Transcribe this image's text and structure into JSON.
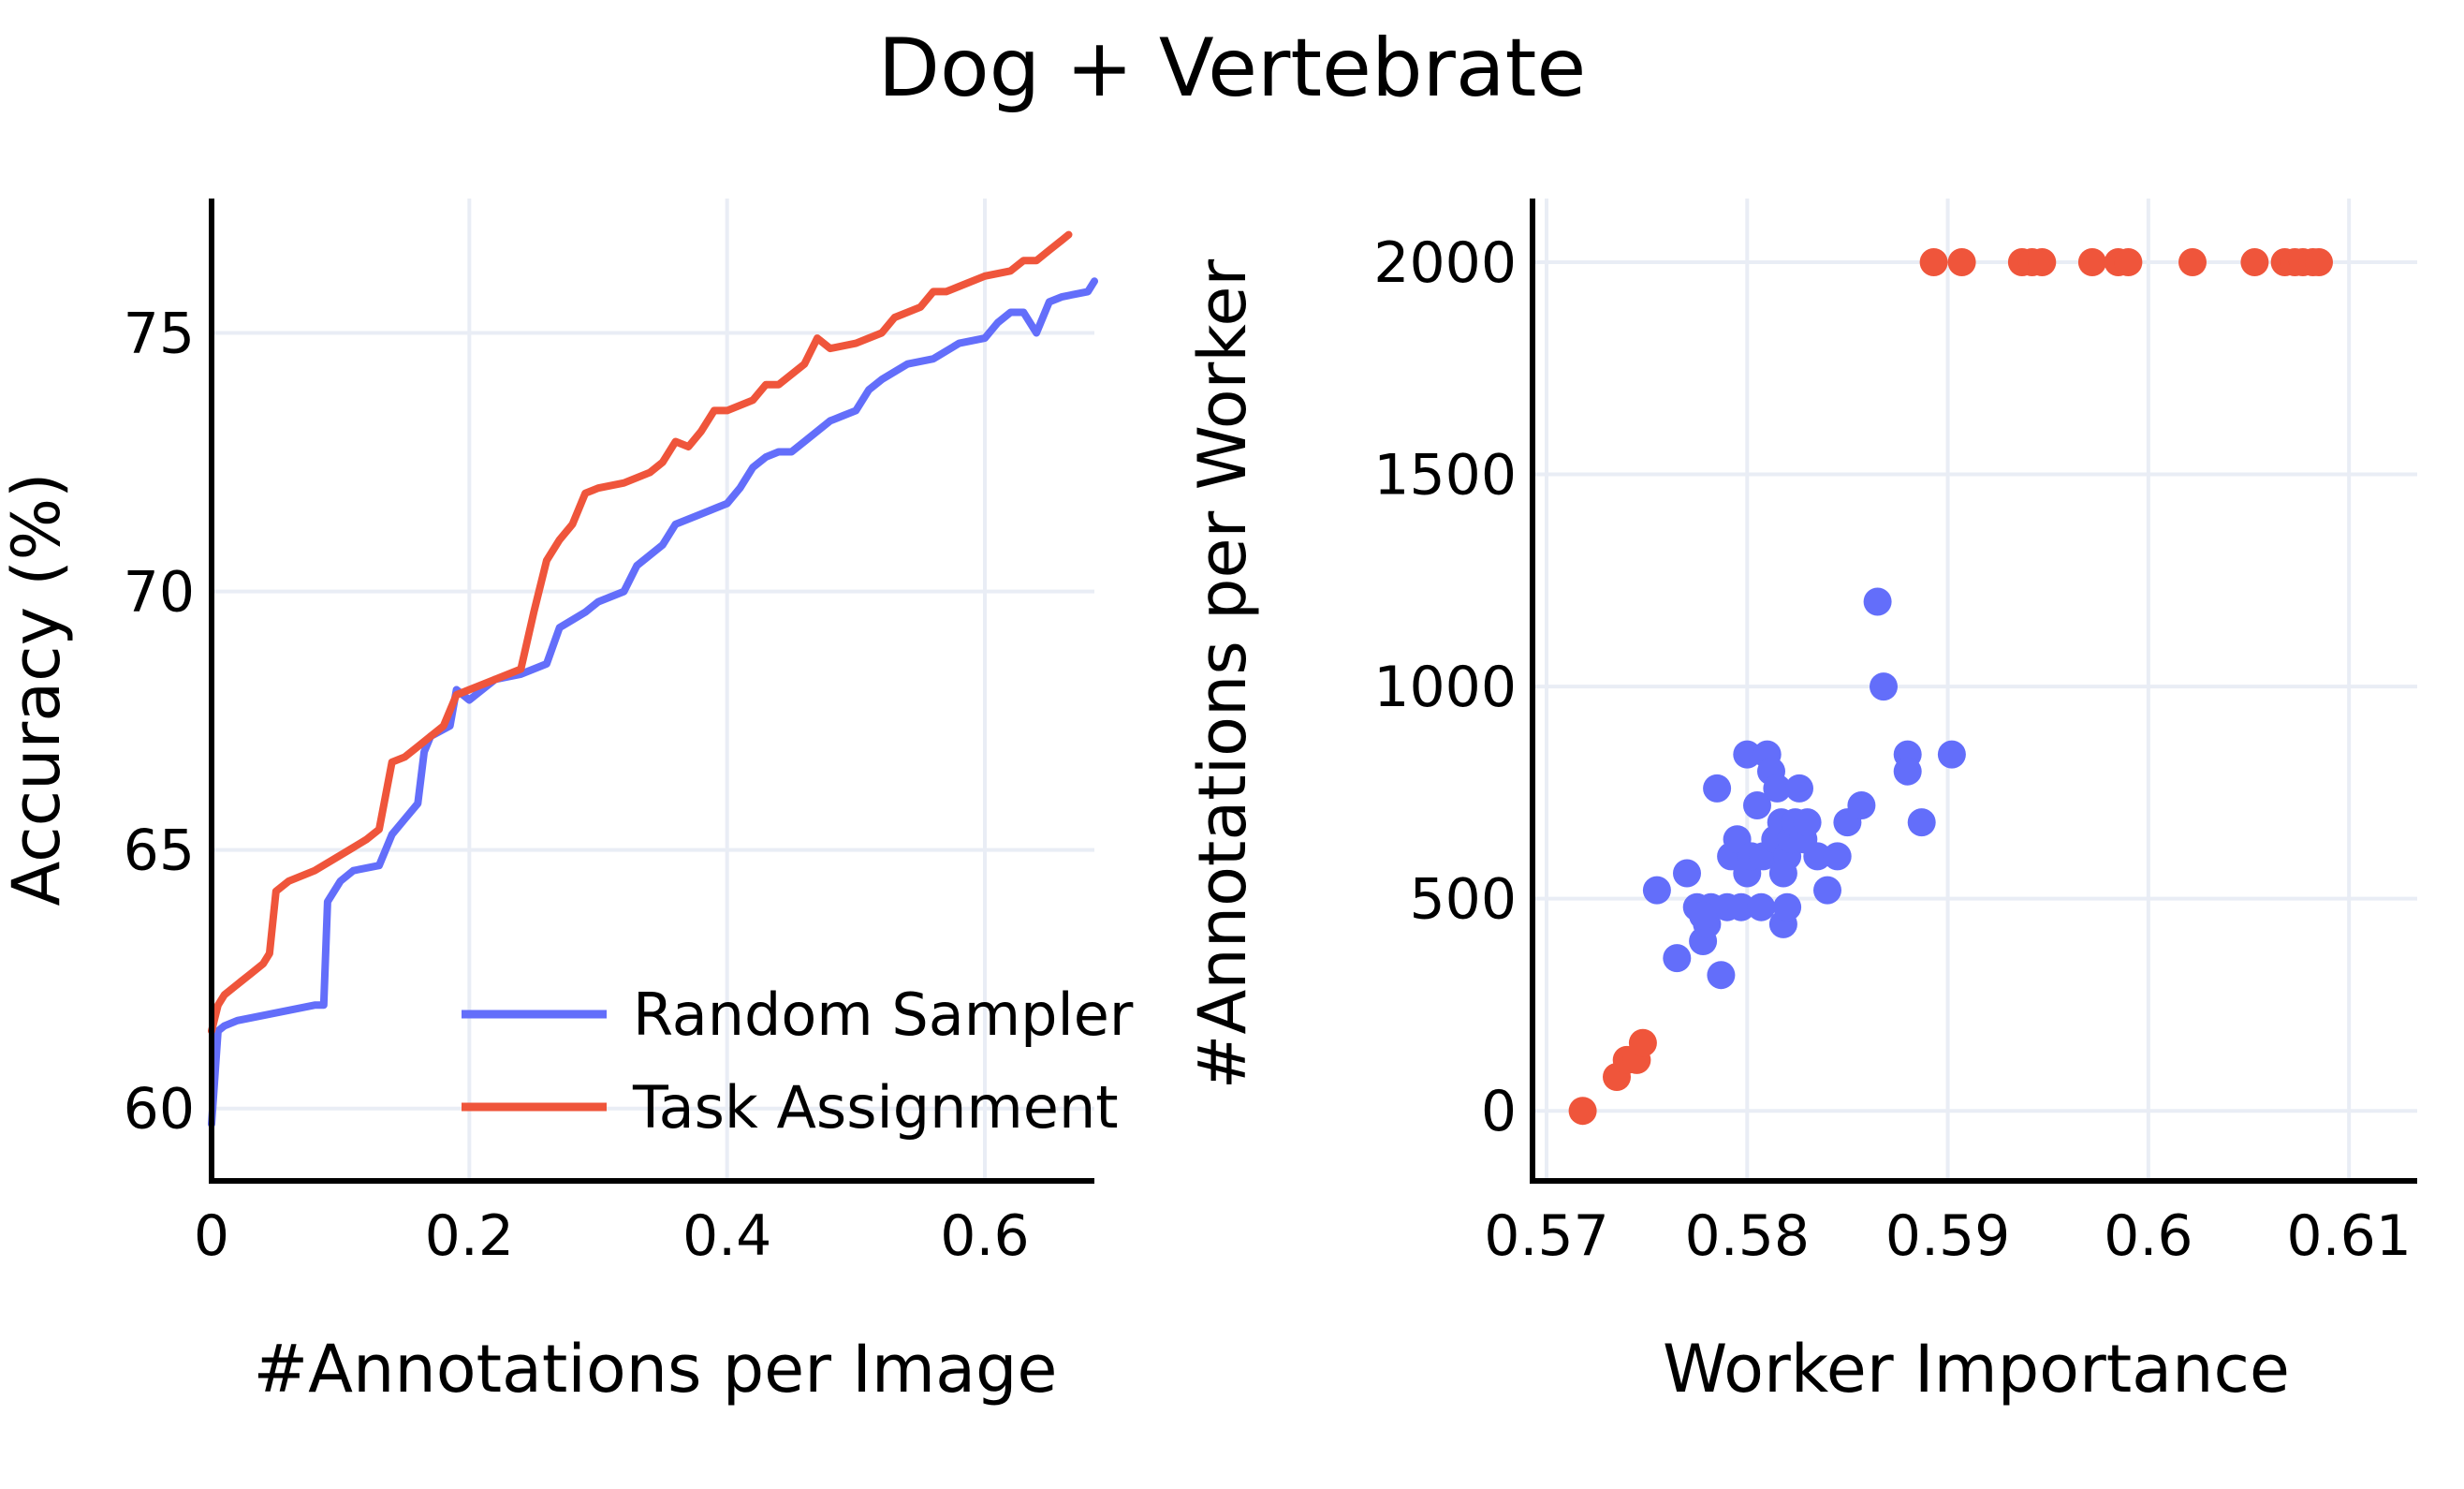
{
  "title": "Dog + Vertebrate",
  "colors": {
    "series1": "#636efa",
    "series2": "#ef553b",
    "grid": "#e9edf5",
    "axis": "#000000"
  },
  "chart_data": [
    {
      "type": "line",
      "xlabel": "#Annotations per Image",
      "ylabel": "Accuracy (%)",
      "xlim": [
        0,
        0.685
      ],
      "ylim": [
        58.6,
        77.6
      ],
      "xticks": [
        0,
        0.2,
        0.4,
        0.6
      ],
      "xtick_labels": [
        "0",
        "0.2",
        "0.4",
        "0.6"
      ],
      "yticks": [
        60,
        65,
        70,
        75
      ],
      "ytick_labels": [
        "60",
        "65",
        "70",
        "75"
      ],
      "grid": true,
      "legend_position": "bottom-right",
      "series": [
        {
          "name": "Random Sampler",
          "color": "#636efa",
          "x": [
            0,
            0.005,
            0.01,
            0.02,
            0.04,
            0.06,
            0.08,
            0.087,
            0.09,
            0.1,
            0.11,
            0.13,
            0.14,
            0.15,
            0.16,
            0.165,
            0.17,
            0.185,
            0.19,
            0.2,
            0.22,
            0.24,
            0.26,
            0.27,
            0.29,
            0.3,
            0.32,
            0.33,
            0.35,
            0.36,
            0.38,
            0.4,
            0.41,
            0.42,
            0.43,
            0.44,
            0.45,
            0.46,
            0.48,
            0.49,
            0.5,
            0.51,
            0.52,
            0.54,
            0.56,
            0.58,
            0.6,
            0.61,
            0.62,
            0.63,
            0.64,
            0.65,
            0.66,
            0.68,
            0.685
          ],
          "y": [
            59.7,
            61.5,
            61.6,
            61.7,
            61.8,
            61.9,
            62.0,
            62.0,
            64.0,
            64.4,
            64.6,
            64.7,
            65.3,
            65.6,
            65.9,
            66.9,
            67.2,
            67.4,
            68.1,
            67.9,
            68.3,
            68.4,
            68.6,
            69.3,
            69.6,
            69.8,
            70.0,
            70.5,
            70.9,
            71.3,
            71.5,
            71.7,
            72.0,
            72.4,
            72.6,
            72.7,
            72.7,
            72.9,
            73.3,
            73.4,
            73.5,
            73.9,
            74.1,
            74.4,
            74.5,
            74.8,
            74.9,
            75.2,
            75.4,
            75.4,
            75.0,
            75.6,
            75.7,
            75.8,
            76.0
          ]
        },
        {
          "name": "Task Assignment",
          "color": "#ef553b",
          "x": [
            0,
            0.005,
            0.01,
            0.02,
            0.03,
            0.04,
            0.045,
            0.05,
            0.06,
            0.08,
            0.1,
            0.12,
            0.13,
            0.14,
            0.15,
            0.16,
            0.18,
            0.19,
            0.2,
            0.22,
            0.24,
            0.25,
            0.26,
            0.27,
            0.28,
            0.29,
            0.3,
            0.32,
            0.34,
            0.35,
            0.36,
            0.37,
            0.38,
            0.39,
            0.4,
            0.42,
            0.43,
            0.44,
            0.46,
            0.47,
            0.48,
            0.5,
            0.52,
            0.53,
            0.55,
            0.56,
            0.57,
            0.58,
            0.6,
            0.62,
            0.63,
            0.64,
            0.65,
            0.66,
            0.665
          ],
          "y": [
            61.5,
            62.0,
            62.2,
            62.4,
            62.6,
            62.8,
            63.0,
            64.2,
            64.4,
            64.6,
            64.9,
            65.2,
            65.4,
            66.7,
            66.8,
            67.0,
            67.4,
            68.0,
            68.1,
            68.3,
            68.5,
            69.6,
            70.6,
            71.0,
            71.3,
            71.9,
            72.0,
            72.1,
            72.3,
            72.5,
            72.9,
            72.8,
            73.1,
            73.5,
            73.5,
            73.7,
            74.0,
            74.0,
            74.4,
            74.9,
            74.7,
            74.8,
            75.0,
            75.3,
            75.5,
            75.8,
            75.8,
            75.9,
            76.1,
            76.2,
            76.4,
            76.4,
            76.6,
            76.8,
            76.9
          ]
        }
      ]
    },
    {
      "type": "scatter",
      "xlabel": "Worker Importance",
      "ylabel": "#Annotations per Worker",
      "xlim": [
        0.5693,
        0.6134
      ],
      "ylim": [
        -165,
        2150
      ],
      "xticks": [
        0.57,
        0.58,
        0.59,
        0.6,
        0.61
      ],
      "xtick_labels": [
        "0.57",
        "0.58",
        "0.59",
        "0.6",
        "0.61"
      ],
      "yticks": [
        0,
        500,
        1000,
        1500,
        2000
      ],
      "ytick_labels": [
        "0",
        "500",
        "1000",
        "1500",
        "2000"
      ],
      "grid": true,
      "series": [
        {
          "color": "#636efa",
          "points": [
            [
              0.5755,
              520
            ],
            [
              0.5765,
              360
            ],
            [
              0.577,
              560
            ],
            [
              0.5775,
              480
            ],
            [
              0.5778,
              400
            ],
            [
              0.578,
              440
            ],
            [
              0.5782,
              480
            ],
            [
              0.5785,
              760
            ],
            [
              0.5787,
              320
            ],
            [
              0.579,
              480
            ],
            [
              0.5792,
              600
            ],
            [
              0.5795,
              640
            ],
            [
              0.5797,
              480
            ],
            [
              0.58,
              840
            ],
            [
              0.58,
              560
            ],
            [
              0.5802,
              600
            ],
            [
              0.5805,
              720
            ],
            [
              0.5807,
              480
            ],
            [
              0.5808,
              600
            ],
            [
              0.581,
              840
            ],
            [
              0.5812,
              800
            ],
            [
              0.5814,
              640
            ],
            [
              0.5815,
              760
            ],
            [
              0.5817,
              680
            ],
            [
              0.5818,
              440
            ],
            [
              0.582,
              480
            ],
            [
              0.582,
              600
            ],
            [
              0.5822,
              640
            ],
            [
              0.5824,
              680
            ],
            [
              0.5826,
              760
            ],
            [
              0.5828,
              640
            ],
            [
              0.583,
              680
            ],
            [
              0.5835,
              600
            ],
            [
              0.584,
              520
            ],
            [
              0.5845,
              600
            ],
            [
              0.585,
              680
            ],
            [
              0.5857,
              720
            ],
            [
              0.5865,
              1200
            ],
            [
              0.5868,
              1000
            ],
            [
              0.588,
              840
            ],
            [
              0.588,
              800
            ],
            [
              0.5887,
              680
            ],
            [
              0.5902,
              840
            ],
            [
              0.5778,
              460
            ],
            [
              0.5818,
              560
            ]
          ]
        },
        {
          "color": "#ef553b",
          "points": [
            [
              0.5718,
              0
            ],
            [
              0.5735,
              80
            ],
            [
              0.574,
              120
            ],
            [
              0.5745,
              120
            ],
            [
              0.5748,
              160
            ],
            [
              0.5893,
              2000
            ],
            [
              0.5907,
              2000
            ],
            [
              0.5937,
              2000
            ],
            [
              0.5942,
              2000
            ],
            [
              0.5947,
              2000
            ],
            [
              0.5972,
              2000
            ],
            [
              0.5985,
              2000
            ],
            [
              0.599,
              2000
            ],
            [
              0.6022,
              2000
            ],
            [
              0.6053,
              2000
            ],
            [
              0.6068,
              2000
            ],
            [
              0.6073,
              2000
            ],
            [
              0.6077,
              2000
            ],
            [
              0.6082,
              2000
            ],
            [
              0.6085,
              2000
            ]
          ]
        }
      ]
    }
  ]
}
